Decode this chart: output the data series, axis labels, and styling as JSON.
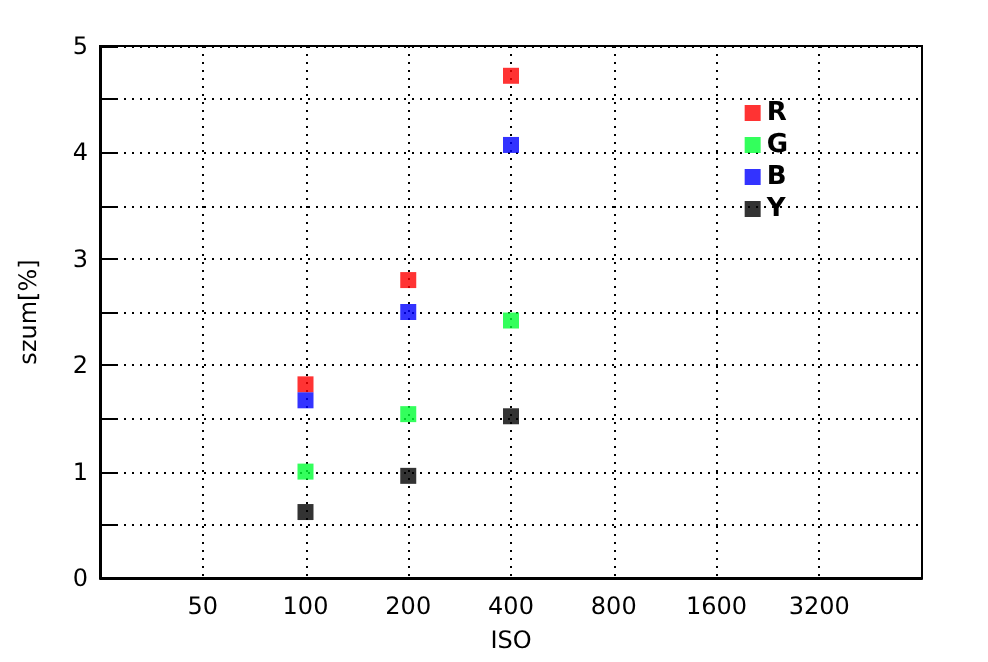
{
  "chart_data": {
    "type": "scatter",
    "xlabel": "ISO",
    "ylabel": "szum[%]",
    "x": [
      100,
      200,
      400
    ],
    "log": "x",
    "xlim": [
      25,
      6400
    ],
    "xticks": [
      50,
      100,
      200,
      400,
      800,
      1600,
      3200
    ],
    "ylim": [
      0,
      5
    ],
    "yticks": [
      0,
      {
        "value": 0.5,
        "label": null
      },
      1,
      {
        "value": 1.5,
        "label": null
      },
      2,
      {
        "value": 2.5,
        "label": null
      },
      3,
      {
        "value": 3.5,
        "label": null
      },
      4,
      {
        "value": 4.5,
        "label": null
      },
      5
    ],
    "grid": true,
    "legend": "top right",
    "marker": "square",
    "series": [
      {
        "name": "R",
        "color": "#ff0000",
        "values": [
          1.82,
          2.8,
          4.72
        ]
      },
      {
        "name": "G",
        "color": "#00ff33",
        "values": [
          1.0,
          1.54,
          2.42
        ]
      },
      {
        "name": "B",
        "color": "#0000ff",
        "values": [
          1.67,
          2.5,
          4.07
        ]
      },
      {
        "name": "Y",
        "color": "#000000",
        "values": [
          0.62,
          0.96,
          1.52
        ]
      }
    ]
  }
}
